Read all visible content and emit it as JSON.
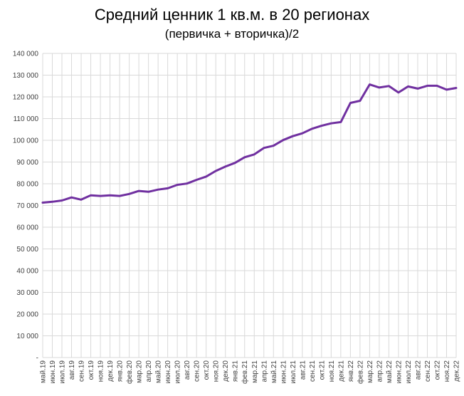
{
  "chart_data": {
    "type": "line",
    "title": "Средний ценник 1 кв.м. в 20 регионах",
    "subtitle": "(первичка + вторичка)/2",
    "xlabel": "",
    "ylabel": "",
    "ylim": [
      0,
      140000
    ],
    "yticks": [
      "-",
      "10 000",
      "20 000",
      "30 000",
      "40 000",
      "50 000",
      "60 000",
      "70 000",
      "80 000",
      "90 000",
      "100 000",
      "110 000",
      "120 000",
      "130 000",
      "140 000"
    ],
    "grid": true,
    "line_color": "#7030a0",
    "categories": [
      "май.19",
      "июн.19",
      "июл.19",
      "авг.19",
      "сен.19",
      "окт.19",
      "ноя.19",
      "дек.19",
      "янв.20",
      "фев.20",
      "мар.20",
      "апр.20",
      "май.20",
      "июн.20",
      "июл.20",
      "авг.20",
      "сен.20",
      "окт.20",
      "ноя.20",
      "дек.20",
      "янв.21",
      "фев.21",
      "мар.21",
      "апр.21",
      "май.21",
      "июн.21",
      "июл.21",
      "авг.21",
      "сен.21",
      "окт.21",
      "ноя.21",
      "дек.21",
      "янв.22",
      "фев.22",
      "мар.22",
      "апр.22",
      "май.22",
      "июн.22",
      "июл.22",
      "авг.22",
      "сен.22",
      "окт.22",
      "ноя.22",
      "дек.22"
    ],
    "series": [
      {
        "values": [
          71300,
          71700,
          72300,
          73700,
          72700,
          74700,
          74400,
          74700,
          74400,
          75300,
          76700,
          76300,
          77300,
          77900,
          79500,
          80100,
          81800,
          83300,
          85900,
          87900,
          89600,
          92200,
          93500,
          96500,
          97500,
          100100,
          101900,
          103200,
          105300,
          106700,
          107800,
          108400,
          117200,
          118200,
          125700,
          124300,
          125000,
          122000,
          124800,
          123800,
          125100,
          125100,
          123300,
          124100
        ]
      }
    ]
  }
}
